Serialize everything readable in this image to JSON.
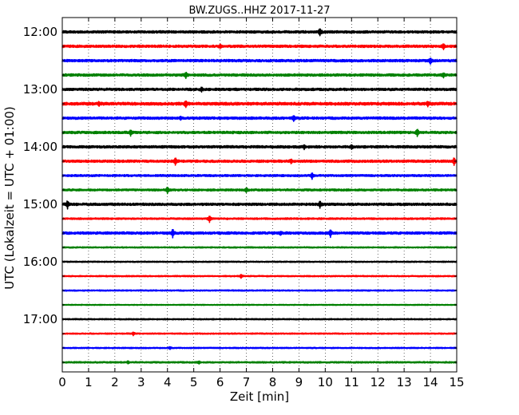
{
  "chart_data": {
    "type": "line",
    "title": "BW.ZUGS..HHZ 2017-11-27",
    "xlabel": "Zeit  [min]",
    "ylabel": "UTC (Lokalzeit = UTC + 01:00)",
    "xlim": [
      0,
      15
    ],
    "x_ticks": [
      "0",
      "1",
      "2",
      "3",
      "4",
      "5",
      "6",
      "7",
      "8",
      "9",
      "10",
      "11",
      "12",
      "13",
      "14",
      "15"
    ],
    "y_ticks": [
      "12:00",
      "13:00",
      "14:00",
      "15:00",
      "16:00",
      "17:00"
    ],
    "grid": "vertical dotted",
    "trace_colors": [
      "#000000",
      "#ff0000",
      "#0000ff",
      "#008000"
    ],
    "traces": [
      {
        "start": "12:00",
        "amplitude": 3,
        "events": [
          {
            "x": 9.8,
            "amp": 8
          }
        ]
      },
      {
        "start": "12:15",
        "amplitude": 3,
        "events": [
          {
            "x": 6.0,
            "amp": 4
          },
          {
            "x": 14.5,
            "amp": 7
          }
        ]
      },
      {
        "start": "12:30",
        "amplitude": 3,
        "events": [
          {
            "x": 14.0,
            "amp": 7
          }
        ]
      },
      {
        "start": "12:45",
        "amplitude": 3,
        "events": [
          {
            "x": 4.7,
            "amp": 6
          },
          {
            "x": 14.5,
            "amp": 5
          }
        ]
      },
      {
        "start": "13:00",
        "amplitude": 3,
        "events": [
          {
            "x": 5.3,
            "amp": 4
          }
        ]
      },
      {
        "start": "13:15",
        "amplitude": 3.5,
        "events": [
          {
            "x": 4.7,
            "amp": 8
          },
          {
            "x": 1.4,
            "amp": 4
          },
          {
            "x": 13.9,
            "amp": 6
          }
        ]
      },
      {
        "start": "13:30",
        "amplitude": 3,
        "events": [
          {
            "x": 8.8,
            "amp": 7
          },
          {
            "x": 4.5,
            "amp": 4
          }
        ]
      },
      {
        "start": "13:45",
        "amplitude": 3,
        "events": [
          {
            "x": 2.6,
            "amp": 7
          },
          {
            "x": 13.5,
            "amp": 8
          }
        ]
      },
      {
        "start": "14:00",
        "amplitude": 3,
        "events": [
          {
            "x": 9.2,
            "amp": 4
          },
          {
            "x": 11.0,
            "amp": 4
          }
        ]
      },
      {
        "start": "14:15",
        "amplitude": 3,
        "events": [
          {
            "x": 4.3,
            "amp": 8
          },
          {
            "x": 8.7,
            "amp": 4
          },
          {
            "x": 14.9,
            "amp": 8
          }
        ]
      },
      {
        "start": "14:30",
        "amplitude": 2.5,
        "events": [
          {
            "x": 9.5,
            "amp": 7
          }
        ]
      },
      {
        "start": "14:45",
        "amplitude": 2.5,
        "events": [
          {
            "x": 4.0,
            "amp": 7
          },
          {
            "x": 7.0,
            "amp": 5
          }
        ]
      },
      {
        "start": "15:00",
        "amplitude": 3,
        "events": [
          {
            "x": 0.2,
            "amp": 9
          },
          {
            "x": 9.8,
            "amp": 8
          }
        ]
      },
      {
        "start": "15:15",
        "amplitude": 2,
        "events": [
          {
            "x": 5.6,
            "amp": 8
          }
        ]
      },
      {
        "start": "15:30",
        "amplitude": 3,
        "events": [
          {
            "x": 4.2,
            "amp": 10
          },
          {
            "x": 10.2,
            "amp": 9
          },
          {
            "x": 8.3,
            "amp": 4
          }
        ]
      },
      {
        "start": "15:45",
        "amplitude": 1.5,
        "events": []
      },
      {
        "start": "16:00",
        "amplitude": 1.5,
        "events": []
      },
      {
        "start": "16:15",
        "amplitude": 1.5,
        "events": [
          {
            "x": 6.8,
            "amp": 4
          }
        ]
      },
      {
        "start": "16:30",
        "amplitude": 1.5,
        "events": []
      },
      {
        "start": "16:45",
        "amplitude": 1.2,
        "events": []
      },
      {
        "start": "17:00",
        "amplitude": 1.5,
        "events": []
      },
      {
        "start": "17:15",
        "amplitude": 1.5,
        "events": [
          {
            "x": 2.7,
            "amp": 4
          }
        ]
      },
      {
        "start": "17:30",
        "amplitude": 1.5,
        "events": [
          {
            "x": 4.1,
            "amp": 3
          }
        ]
      },
      {
        "start": "17:45",
        "amplitude": 1.8,
        "events": [
          {
            "x": 2.5,
            "amp": 3
          },
          {
            "x": 5.2,
            "amp": 3
          }
        ]
      }
    ]
  }
}
